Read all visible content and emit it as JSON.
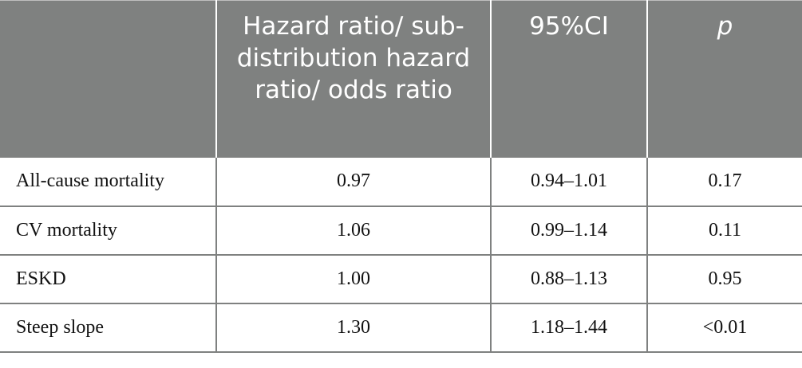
{
  "table": {
    "headers": [
      "",
      "Hazard ratio/ sub-distribution hazard ratio/ odds ratio",
      "95%CI",
      "p"
    ],
    "rows": [
      [
        "All-cause mortality",
        "0.97",
        "0.94–1.01",
        "0.17"
      ],
      [
        "CV mortality",
        "1.06",
        "0.99–1.14",
        "0.11"
      ],
      [
        "ESKD",
        "1.00",
        "0.88–1.13",
        "0.95"
      ],
      [
        "Steep slope",
        "1.30",
        "1.18–1.44",
        "<0.01"
      ]
    ]
  },
  "colors": {
    "header_background": "#7f8180",
    "header_text": "#ffffff",
    "grid_line": "#7f8180",
    "body_text": "#111111"
  }
}
